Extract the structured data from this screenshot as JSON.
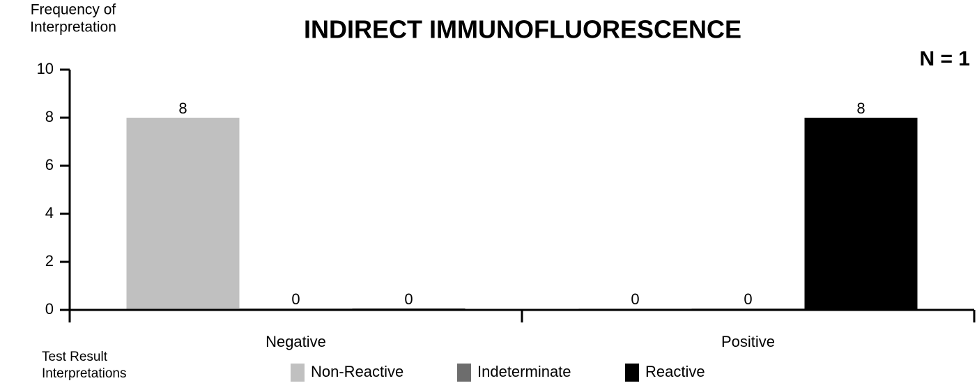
{
  "chart_data": {
    "type": "bar",
    "title": "INDIRECT IMMUNOFLUORESCENCE",
    "annotation": "N = 1",
    "ylabel": [
      "Frequency of",
      "Interpretation"
    ],
    "xlabel": [
      "Test Result",
      "Interpretations"
    ],
    "categories": [
      "Negative",
      "Positive"
    ],
    "series": [
      {
        "name": "Non-Reactive",
        "color": "#c0c0c0",
        "values": [
          8,
          0
        ]
      },
      {
        "name": "Indeterminate",
        "color": "#6d6d6d",
        "values": [
          0,
          0
        ]
      },
      {
        "name": "Reactive",
        "color": "#000000",
        "values": [
          0,
          8
        ]
      }
    ],
    "ylim": [
      0,
      10
    ],
    "yticks": [
      0,
      2,
      4,
      6,
      8,
      10
    ],
    "grid": false,
    "legend": "bottom"
  }
}
